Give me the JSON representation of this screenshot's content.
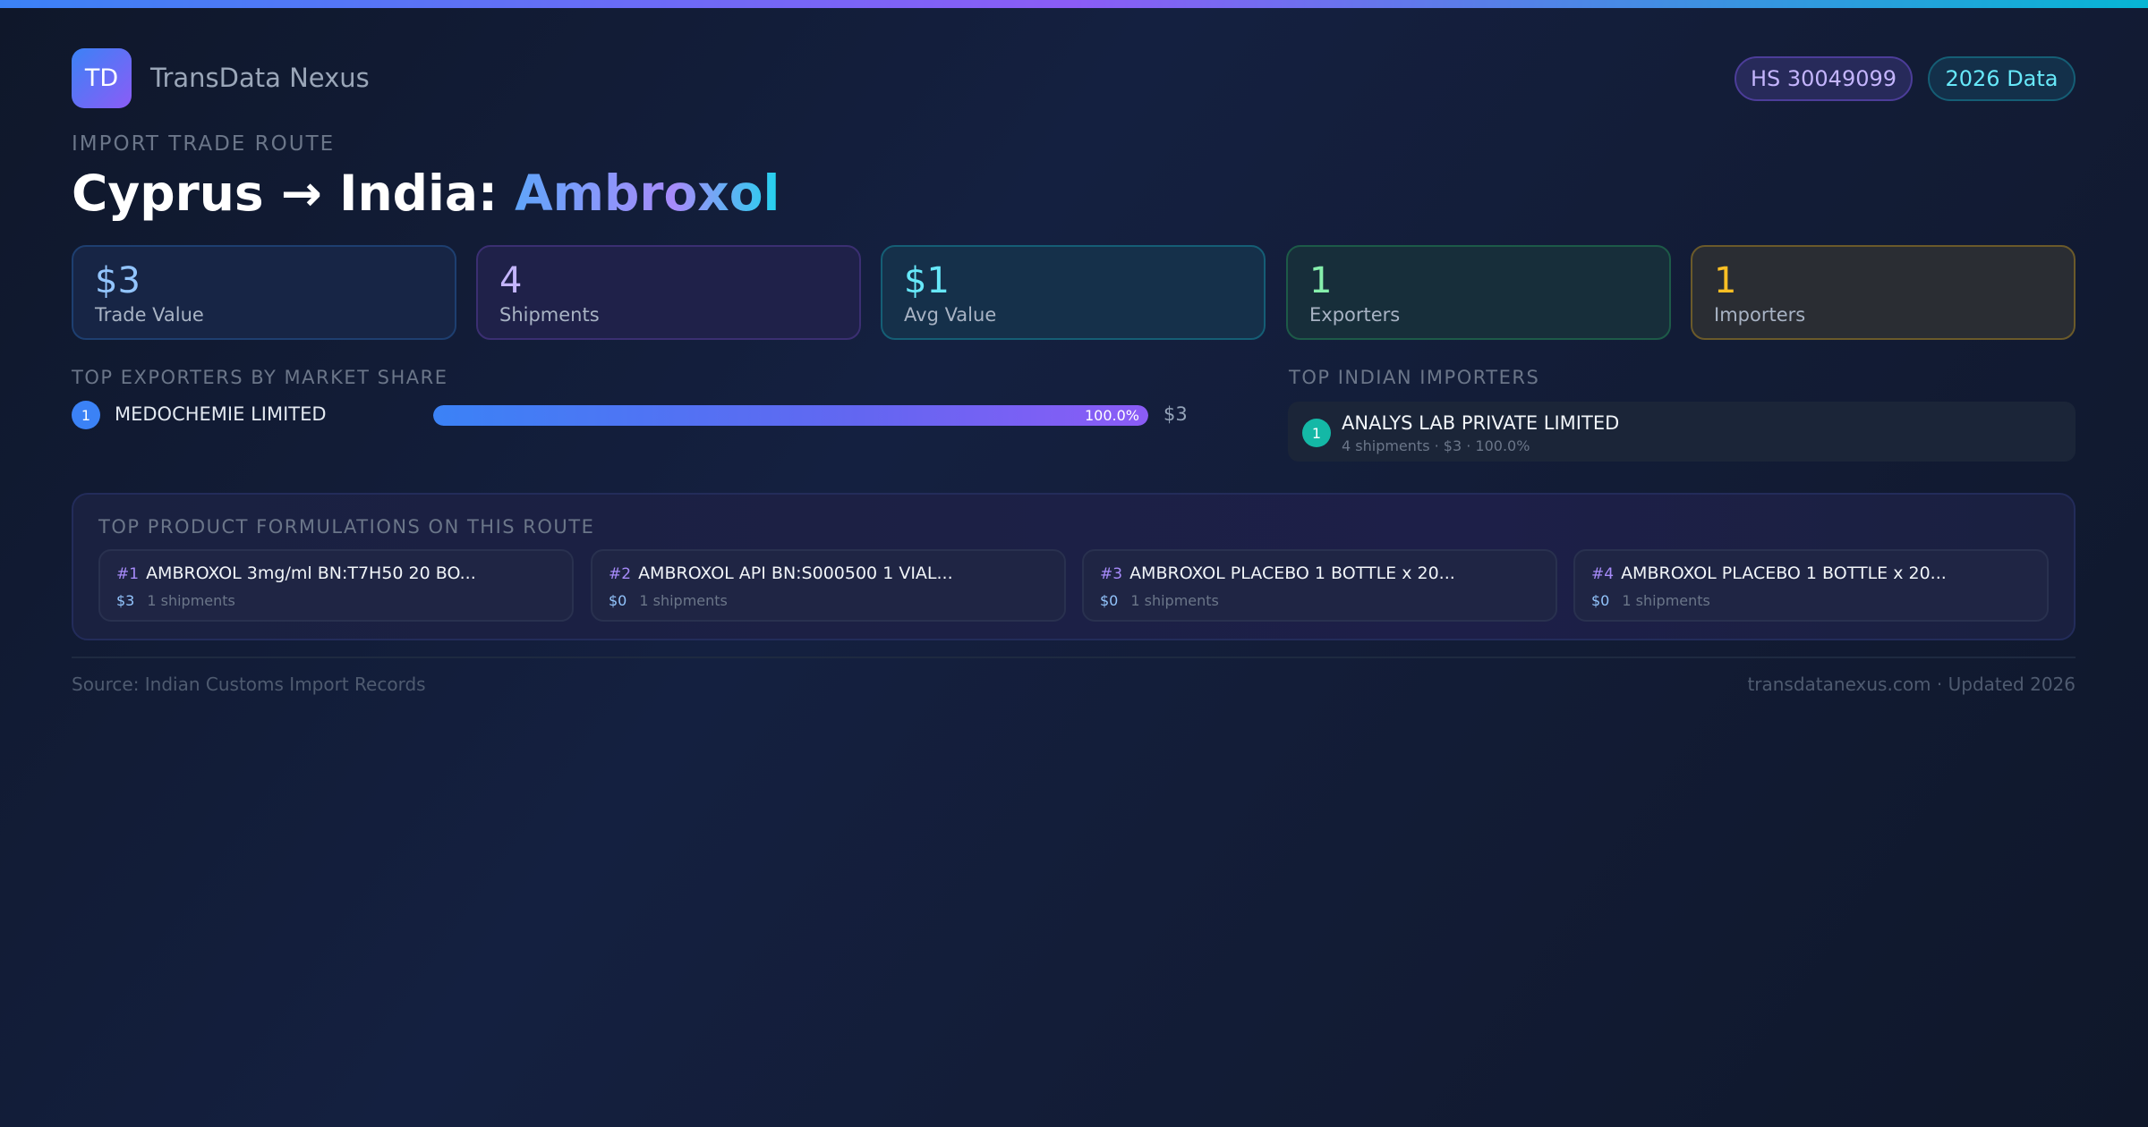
{
  "header": {
    "logo": "TD",
    "brand": "TransData Nexus",
    "badges": [
      "HS 30049099",
      "2026 Data"
    ]
  },
  "route": {
    "kicker": "IMPORT TRADE ROUTE",
    "title_prefix": "Cyprus → India: ",
    "title_product": "Ambroxol"
  },
  "stats": [
    {
      "value": "$3",
      "label": "Trade Value"
    },
    {
      "value": "4",
      "label": "Shipments"
    },
    {
      "value": "$1",
      "label": "Avg Value"
    },
    {
      "value": "1",
      "label": "Exporters"
    },
    {
      "value": "1",
      "label": "Importers"
    }
  ],
  "exporters": {
    "title": "TOP EXPORTERS BY MARKET SHARE",
    "items": [
      {
        "rank": "1",
        "name": "MEDOCHEMIE LIMITED",
        "share": "100.0%",
        "share_value": 100,
        "value": "$3"
      }
    ]
  },
  "importers": {
    "title": "TOP INDIAN IMPORTERS",
    "items": [
      {
        "rank": "1",
        "name": "ANALYS LAB PRIVATE LIMITED",
        "meta": "4 shipments · $3 · 100.0%"
      }
    ]
  },
  "formulations": {
    "title": "TOP PRODUCT FORMULATIONS ON THIS ROUTE",
    "items": [
      {
        "rank": "#1",
        "name": "AMBROXOL 3mg/ml BN:T7H50 20 BO...",
        "value": "$3",
        "shipments": "1 shipments"
      },
      {
        "rank": "#2",
        "name": "AMBROXOL API BN:S000500 1 VIAL...",
        "value": "$0",
        "shipments": "1 shipments"
      },
      {
        "rank": "#3",
        "name": "AMBROXOL PLACEBO 1 BOTTLE x 20...",
        "value": "$0",
        "shipments": "1 shipments"
      },
      {
        "rank": "#4",
        "name": "AMBROXOL PLACEBO 1 BOTTLE x 20...",
        "value": "$0",
        "shipments": "1 shipments"
      }
    ]
  },
  "footer": {
    "source": "Source: Indian Customs Import Records",
    "site": "transdatanexus.com · Updated 2026"
  }
}
